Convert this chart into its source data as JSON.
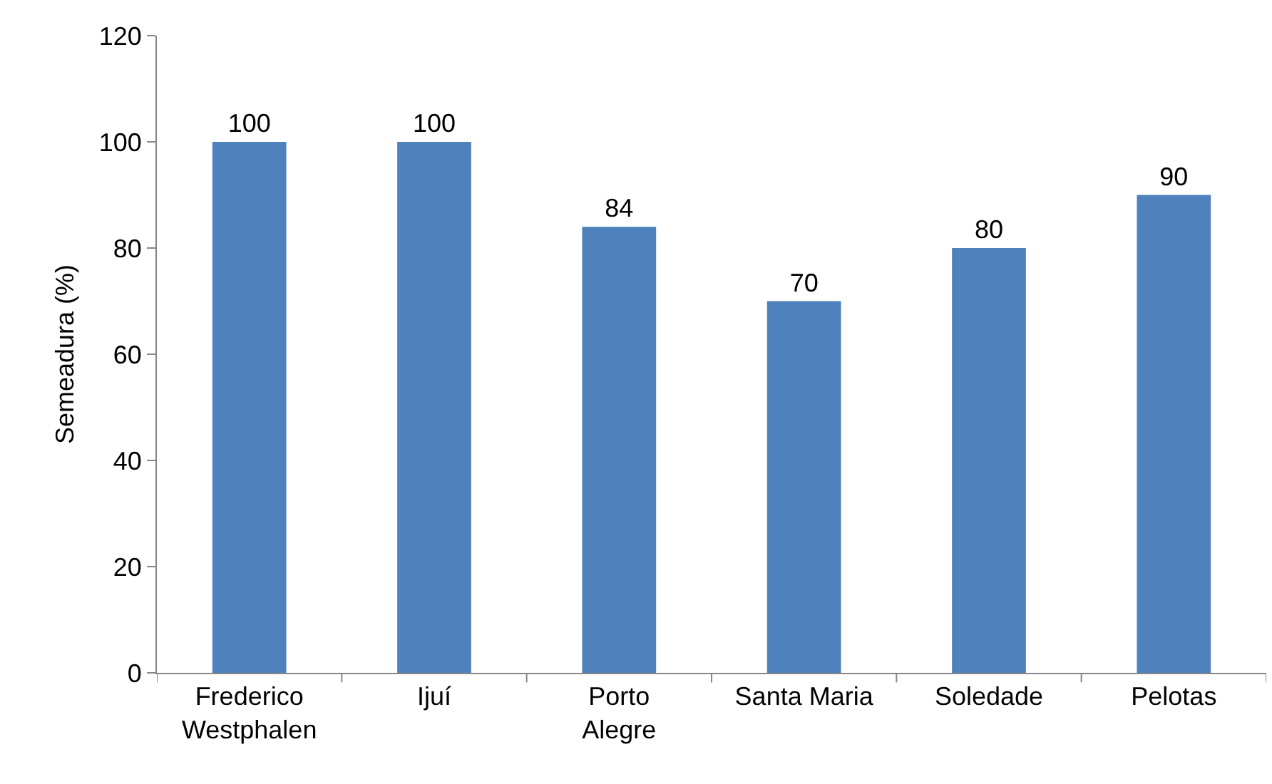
{
  "chart_data": {
    "type": "bar",
    "ylabel": "Semeadura (%)",
    "categories": [
      "Frederico\nWestphalen",
      "Ijuí",
      "Porto\nAlegre",
      "Santa Maria",
      "Soledade",
      "Pelotas"
    ],
    "values": [
      100,
      100,
      84,
      70,
      80,
      90
    ],
    "color": "#4f81bd",
    "ylim": [
      0,
      120
    ],
    "yticks": [
      0,
      20,
      40,
      60,
      80,
      100,
      120
    ],
    "grid": false,
    "data_labels": true
  }
}
